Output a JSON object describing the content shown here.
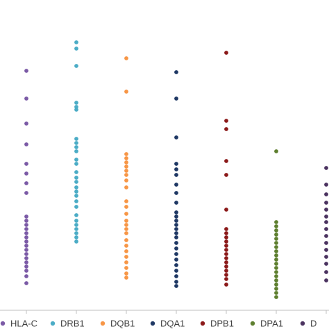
{
  "chart_data": {
    "type": "scatter",
    "grid": false,
    "legend_position": "bottom",
    "categories": [
      "HLA-C",
      "DRB1",
      "DQB1",
      "DQA1",
      "DPB1",
      "DPA1",
      "D"
    ],
    "series": [
      {
        "name": "HLA-C",
        "color": "#7b5aa6",
        "values": [
          102,
          142,
          178,
          208,
          236,
          250,
          264,
          278,
          312,
          318,
          324,
          330,
          336,
          342,
          348,
          354,
          360,
          366,
          372,
          378,
          384,
          390,
          398,
          408
        ]
      },
      {
        "name": "DRB1",
        "color": "#4bacc6",
        "values": [
          61,
          70,
          95,
          148,
          154,
          158,
          200,
          206,
          212,
          218,
          230,
          236,
          248,
          256,
          262,
          270,
          276,
          282,
          290,
          298,
          310,
          318,
          324,
          330,
          336,
          342,
          348
        ]
      },
      {
        "name": "DQB1",
        "color": "#f79646",
        "values": [
          84,
          132,
          222,
          228,
          234,
          240,
          246,
          252,
          260,
          270,
          290,
          298,
          308,
          318,
          324,
          330,
          336,
          346,
          354,
          362,
          370,
          378,
          386,
          394,
          400
        ]
      },
      {
        "name": "DQA1",
        "color": "#1f3864",
        "values": [
          104,
          142,
          198,
          236,
          244,
          252,
          266,
          278,
          292,
          306,
          312,
          318,
          324,
          330,
          336,
          342,
          350,
          358,
          366,
          374,
          382,
          390,
          398,
          406,
          412
        ]
      },
      {
        "name": "DPB1",
        "color": "#8b1a1a",
        "values": [
          76,
          174,
          186,
          232,
          252,
          302,
          330,
          336,
          342,
          348,
          354,
          360,
          366,
          372,
          378,
          384,
          390,
          396,
          402,
          410
        ]
      },
      {
        "name": "DPA1",
        "color": "#5e7f2f",
        "values": [
          218,
          320,
          326,
          332,
          338,
          344,
          350,
          356,
          362,
          368,
          374,
          380,
          386,
          392,
          398,
          404,
          410,
          416,
          422,
          428
        ]
      },
      {
        "name": "D",
        "color": "#4b3360",
        "values": [
          242,
          266,
          280,
          292,
          302,
          312,
          320,
          330,
          340,
          350,
          360,
          370,
          380,
          392,
          404
        ]
      }
    ],
    "legend": [
      "HLA-C",
      "DRB1",
      "DQB1",
      "DQA1",
      "DPB1",
      "DPA1",
      "D"
    ]
  }
}
